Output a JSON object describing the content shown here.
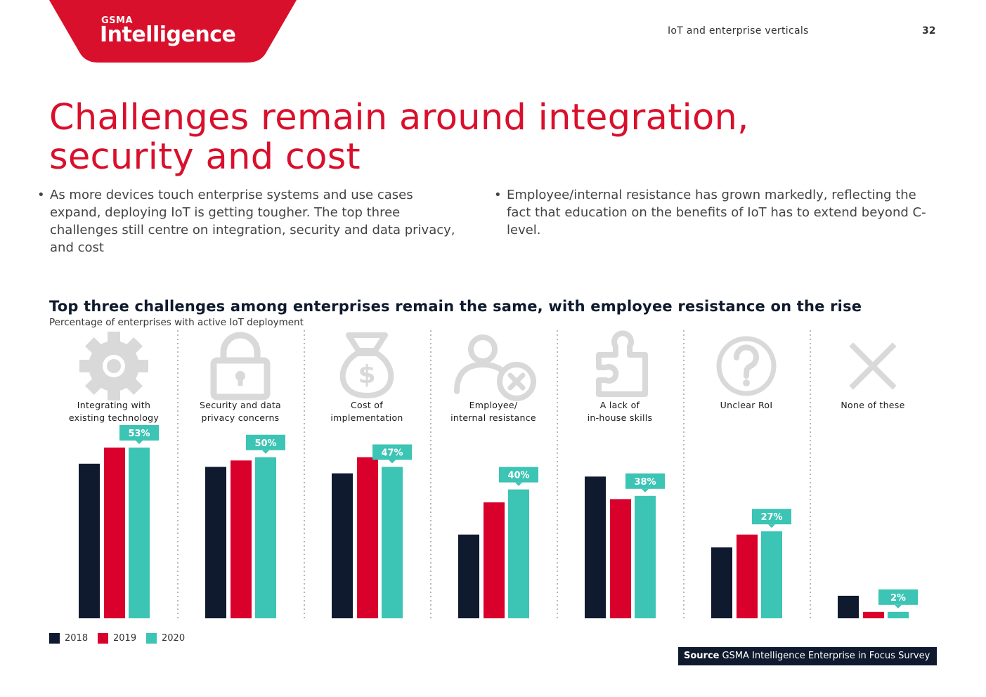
{
  "header": {
    "brand_small": "GSMA",
    "brand_big": "Intelligence",
    "section_name": "IoT and enterprise verticals",
    "page_number": "32",
    "brand_color": "#d8102c"
  },
  "title": "Challenges remain around integration, security and cost",
  "bullets": [
    "As more devices touch enterprise systems and use cases expand, deploying IoT is getting tougher. The top three challenges still centre on integration, security and data privacy, and cost",
    "Employee/internal resistance has grown markedly, reflecting the fact that education on the benefits of IoT has to extend beyond C-level."
  ],
  "chart_data": {
    "type": "bar",
    "title": "Top three challenges among enterprises remain the same, with employee resistance on the rise",
    "subtitle": "Percentage of enterprises with active IoT deployment",
    "categories": [
      [
        "Integrating with",
        "existing technology"
      ],
      [
        "Security and data",
        "privacy concerns"
      ],
      [
        "Cost of",
        "implementation"
      ],
      [
        "Employee/",
        "internal resistance"
      ],
      [
        "A lack of",
        "in-house skills"
      ],
      [
        "Unclear RoI"
      ],
      [
        "None of these"
      ]
    ],
    "icons": [
      "gear-icon",
      "padlock-icon",
      "money-bag-icon",
      "person-reject-icon",
      "puzzle-piece-icon",
      "question-circle-icon",
      "cross-icon"
    ],
    "series": [
      {
        "name": "2018",
        "color": "#0f1a2e",
        "values": [
          48,
          47,
          45,
          26,
          44,
          22,
          7
        ]
      },
      {
        "name": "2019",
        "color": "#d9002c",
        "values": [
          53,
          49,
          50,
          36,
          37,
          26,
          2
        ]
      },
      {
        "name": "2020",
        "color": "#3cc4b4",
        "values": [
          53,
          50,
          47,
          40,
          38,
          27,
          2
        ]
      }
    ],
    "data_labels": [
      "53%",
      "50%",
      "47%",
      "40%",
      "38%",
      "27%",
      "2%"
    ],
    "ylim": [
      0,
      55
    ],
    "legend_position": "bottom-left",
    "grid": false
  },
  "source": {
    "label": "Source",
    "text": "GSMA Intelligence Enterprise in Focus Survey"
  }
}
